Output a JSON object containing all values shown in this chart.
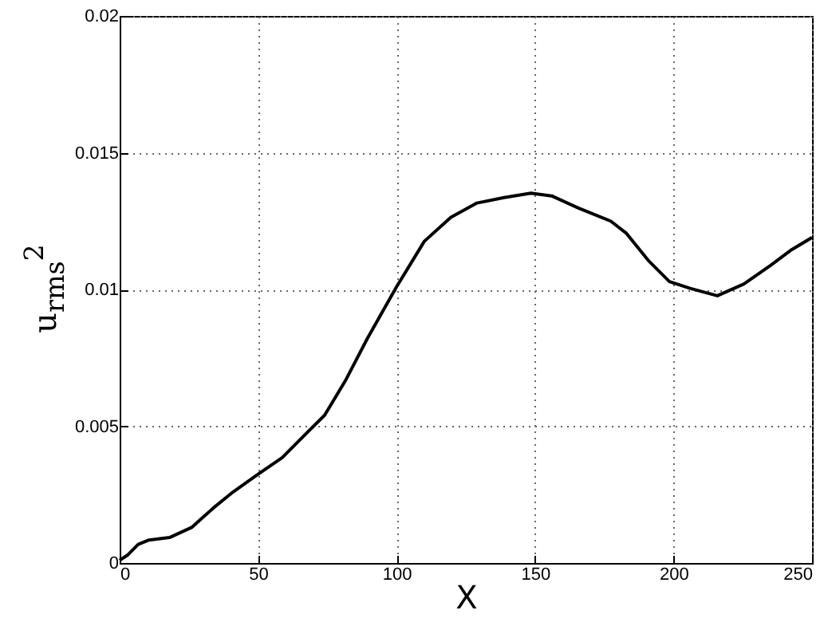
{
  "chart_data": {
    "type": "line",
    "xlabel": "X",
    "ylabel": "u$_{rms}$$^{2}$",
    "x": [
      0,
      3,
      6.7,
      10.6,
      18,
      26,
      33.7,
      41,
      50,
      58.7,
      68,
      74,
      81.7,
      89.4,
      100,
      110,
      119.6,
      129,
      138.8,
      148.5,
      156,
      165.8,
      177.3,
      183,
      190.8,
      198.5,
      206,
      215.8,
      225.4,
      235,
      242.7,
      250
    ],
    "series": [
      {
        "color": "#000000",
        "values": [
          0.0001,
          0.0003,
          0.00068,
          0.00084,
          0.00093,
          0.0013,
          0.002,
          0.0026,
          0.00325,
          0.00385,
          0.0048,
          0.0054,
          0.0067,
          0.0082,
          0.0101,
          0.01176,
          0.01264,
          0.01316,
          0.01336,
          0.01352,
          0.01342,
          0.01297,
          0.0125,
          0.01205,
          0.01107,
          0.01029,
          0.01004,
          0.00977,
          0.0102,
          0.01088,
          0.01146,
          0.0119
        ]
      }
    ],
    "xlim": [
      0,
      250
    ],
    "xticks": [
      0,
      50,
      100,
      150,
      200,
      250
    ],
    "ylim": [
      0,
      0.02
    ],
    "yticks": [
      0,
      0.005,
      0.01,
      0.015,
      0.02
    ],
    "grid": true,
    "line_style": "solid",
    "marker": "none"
  }
}
